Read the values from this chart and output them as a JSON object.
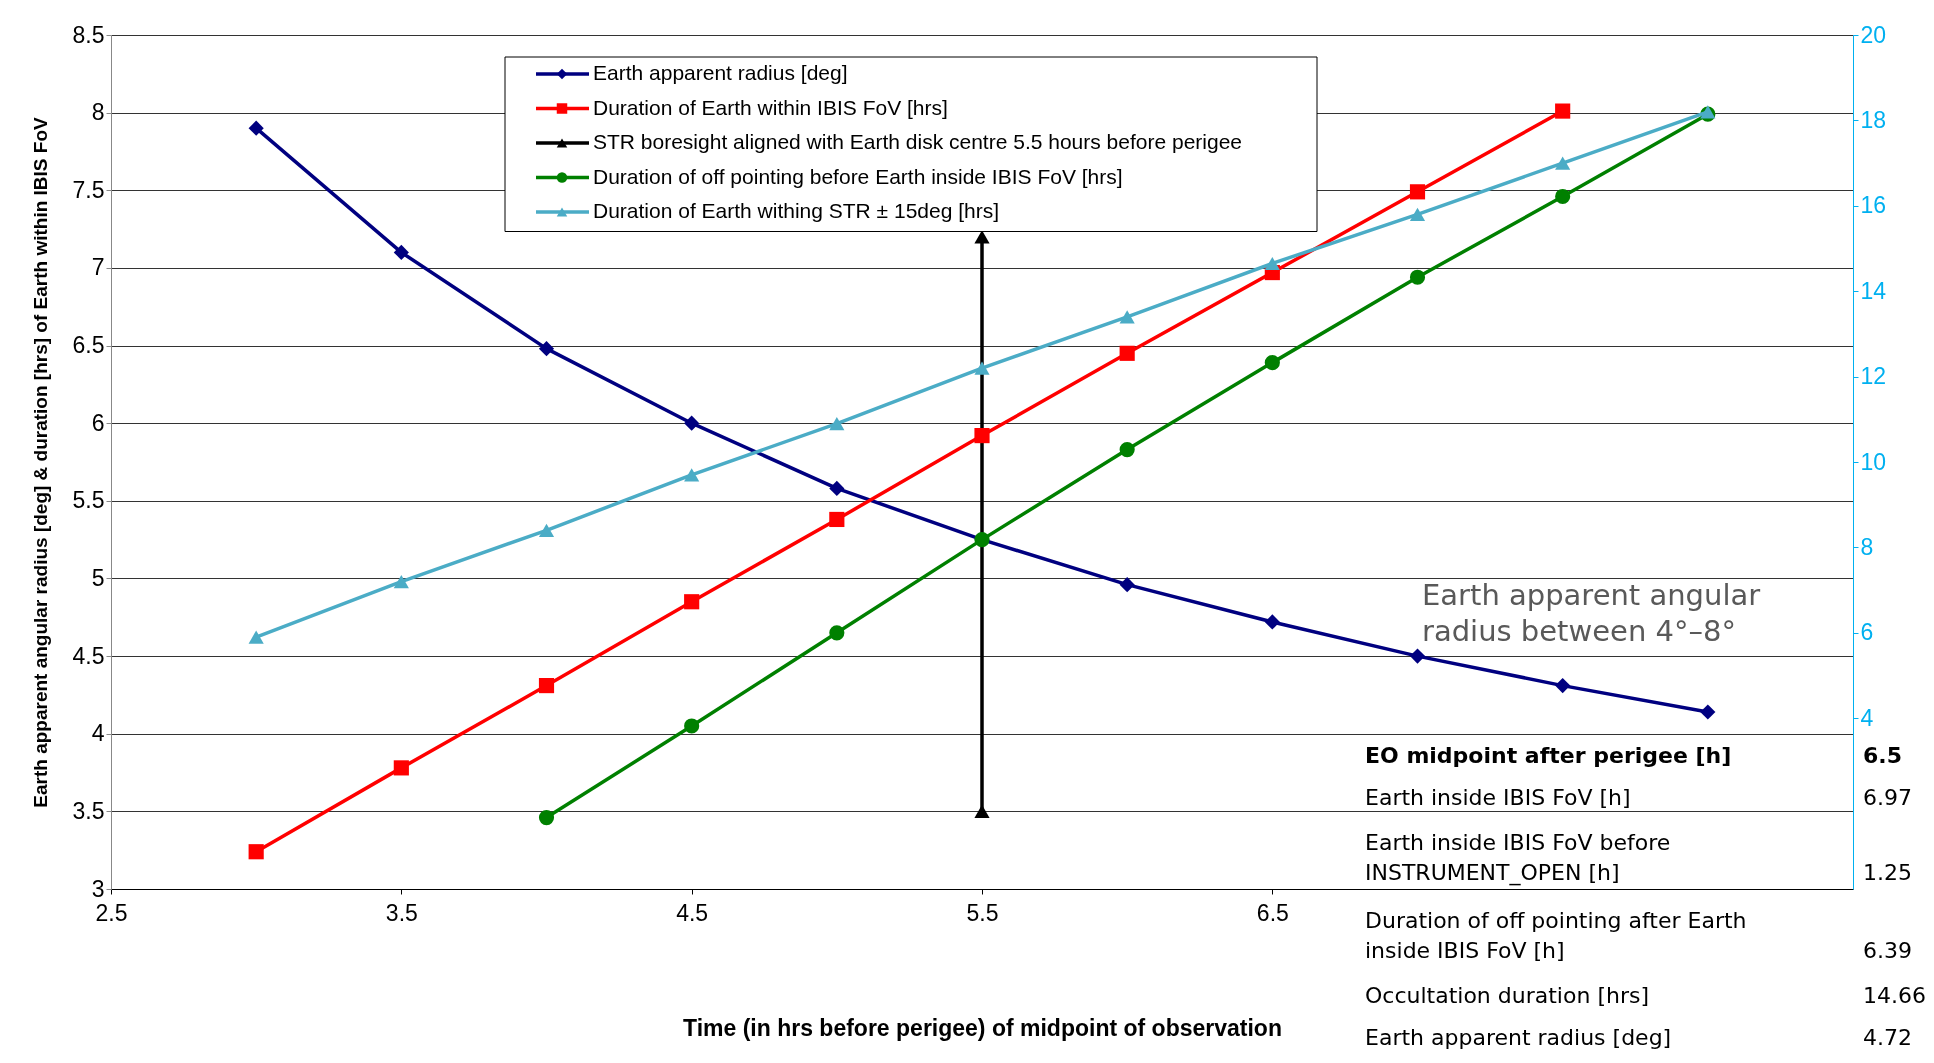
{
  "chart_data": {
    "type": "line",
    "xlabel": "Time (in hrs before perigee) of midpoint of observation",
    "ylabel": "Earth apparent angular radius [deg] & duration [hrs] of Earth within IBIS FoV",
    "x": [
      3,
      3.5,
      4,
      4.5,
      5,
      5.5,
      6,
      6.5,
      7,
      7.5,
      8
    ],
    "xlim": [
      2.5,
      8.5
    ],
    "xticks": [
      2.5,
      3.5,
      4.5,
      5.5,
      6.5
    ],
    "ylim": [
      3,
      8.5
    ],
    "yticks": [
      3,
      3.5,
      4,
      4.5,
      5,
      5.5,
      6,
      6.5,
      7,
      7.5,
      8,
      8.5
    ],
    "y2lim": [
      0,
      20
    ],
    "y2ticks": [
      4,
      6,
      8,
      10,
      12,
      14,
      16,
      18,
      20
    ],
    "grid": "y",
    "legend": "top",
    "line_style": "solid",
    "series": [
      {
        "name": "Earth apparent radius [deg]",
        "color": "#000080",
        "marker": "diamond",
        "values": [
          7.9,
          7.1,
          6.48,
          6.0,
          5.58,
          5.25,
          4.96,
          4.72,
          4.5,
          4.31,
          4.14
        ]
      },
      {
        "name": "Duration of Earth within IBIS FoV [hrs]",
        "color": "#ff0000",
        "marker": "square",
        "values": [
          3.24,
          3.78,
          4.31,
          4.85,
          5.38,
          5.92,
          6.45,
          6.97,
          7.49,
          8.01,
          null
        ]
      },
      {
        "name": "STR boresight aligned with Earth disk centre 5.5 hours before perigee",
        "color": "#000000",
        "marker": "triangle",
        "x": [
          5.5,
          5.5
        ],
        "values": [
          3.5,
          7.2
        ]
      },
      {
        "name": "Duration of off pointing before Earth inside IBIS FoV [hrs]",
        "color": "#008000",
        "marker": "circle",
        "values": [
          null,
          null,
          3.46,
          4.05,
          4.65,
          5.25,
          5.83,
          6.39,
          6.94,
          7.46,
          7.99
        ]
      },
      {
        "name": "Duration of Earth withing STR ± 15deg  [hrs]",
        "color": "#4bacc6",
        "marker": "triangle",
        "axis": "y2",
        "values": [
          5.9,
          7.2,
          8.4,
          9.7,
          10.9,
          12.2,
          13.4,
          14.65,
          15.8,
          17.0,
          18.2
        ]
      }
    ],
    "annotations": [
      "Earth apparent angular radius between 4°–8°",
      "EO midpoint after perigee [h]",
      "6.5",
      "Earth inside IBIS FoV [h]",
      "6.97",
      "Earth inside IBIS FoV before INSTRUMENT_OPEN [h]",
      "1.25",
      "Duration of off pointing after Earth inside IBIS FoV [h]",
      "6.39",
      "Occultation duration [hrs]",
      "14.66",
      "Earth apparent radius [deg]",
      "4.72"
    ]
  }
}
